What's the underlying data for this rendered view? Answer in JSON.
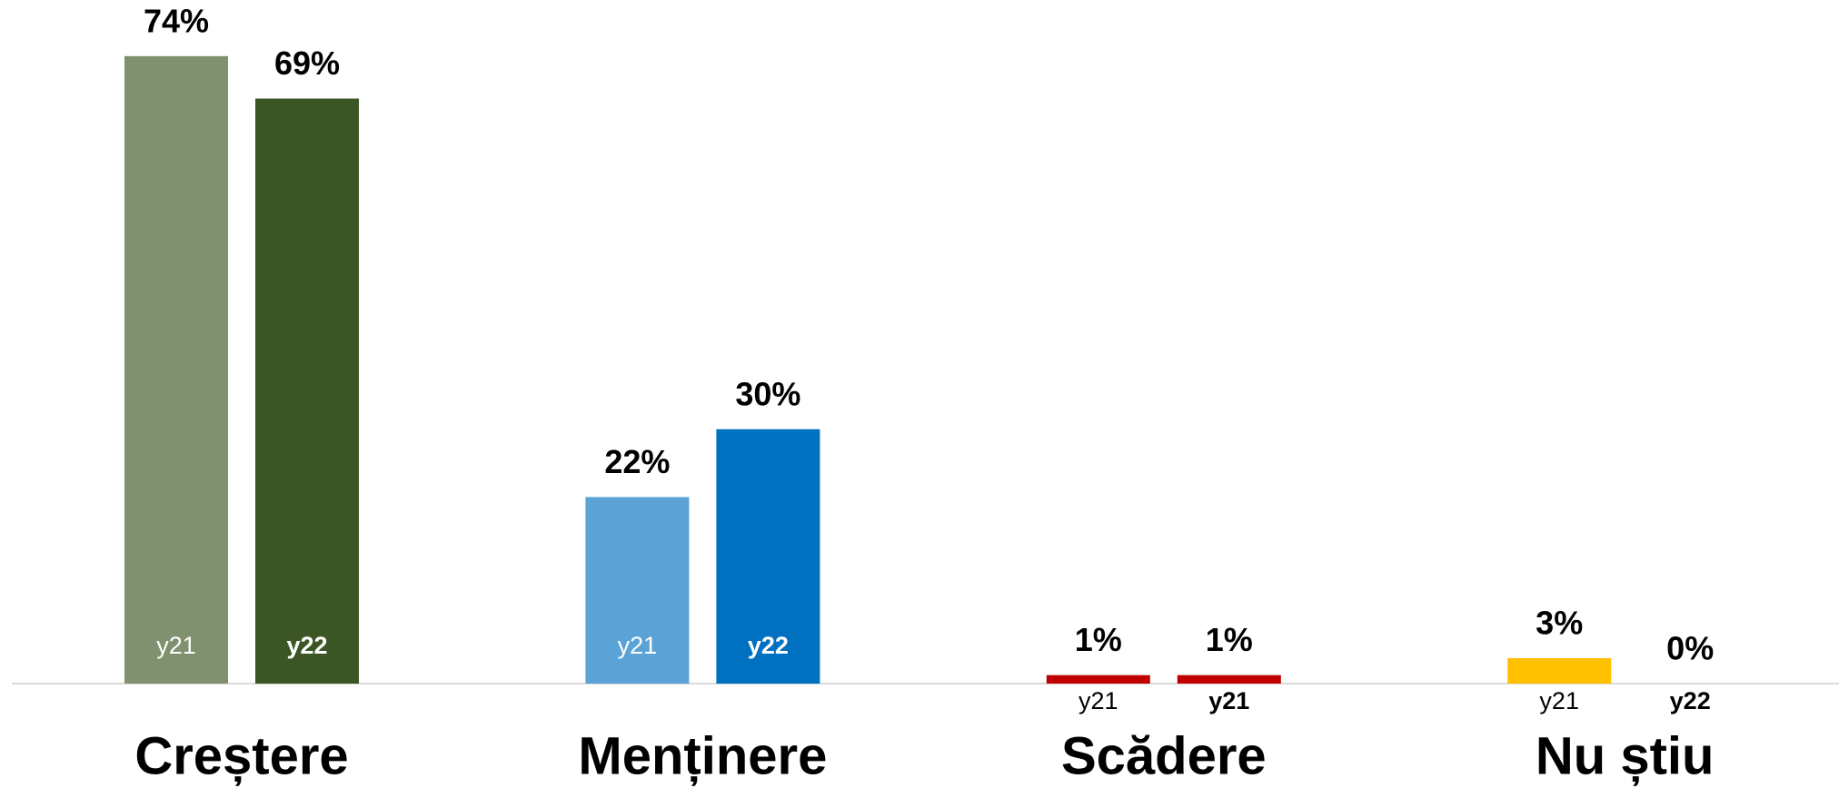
{
  "chart_data": {
    "type": "bar",
    "groups": [
      {
        "category": "Creștere",
        "bars": [
          {
            "label": "y21",
            "value": 74,
            "value_label": "74%",
            "color": "#7f916f"
          },
          {
            "label": "y22",
            "value": 69,
            "value_label": "69%",
            "color": "#3b5624"
          }
        ]
      },
      {
        "category": "Menținere",
        "bars": [
          {
            "label": "y21",
            "value": 22,
            "value_label": "22%",
            "color": "#5ba3d6"
          },
          {
            "label": "y22",
            "value": 30,
            "value_label": "30%",
            "color": "#0070c0"
          }
        ]
      },
      {
        "category": "Scădere",
        "bars": [
          {
            "label": "y21",
            "value": 1,
            "value_label": "1%",
            "color": "#c00000"
          },
          {
            "label": "y21",
            "value": 1,
            "value_label": "1%",
            "color": "#c00000"
          }
        ]
      },
      {
        "category": "Nu știu",
        "bars": [
          {
            "label": "y21",
            "value": 3,
            "value_label": "3%",
            "color": "#ffc000"
          },
          {
            "label": "y22",
            "value": 0,
            "value_label": "0%",
            "color": "#bf9000"
          }
        ]
      }
    ]
  }
}
